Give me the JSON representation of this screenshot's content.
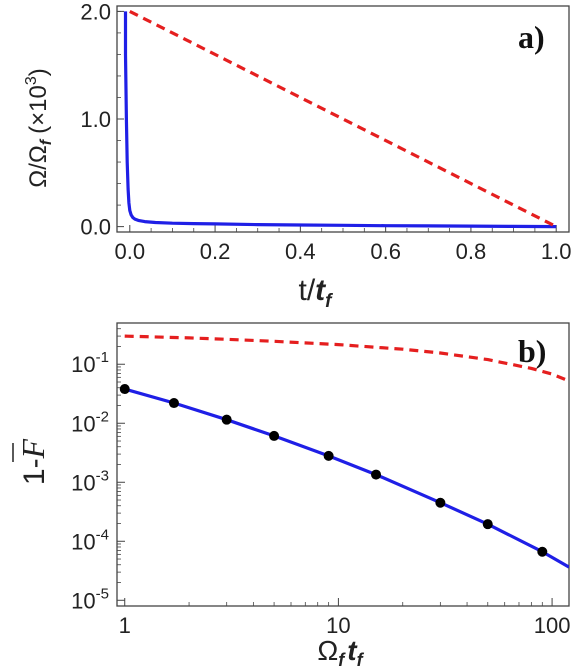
{
  "chart_data": [
    {
      "panel_label": "a)",
      "type": "line",
      "xlabel_main": "t/",
      "xlabel_italic": "t",
      "xlabel_sub": "f",
      "ylabel_omega": "Ω/Ω",
      "ylabel_sub": "f",
      "ylabel_factor": "(×10",
      "ylabel_exp": "3",
      "ylabel_close": ")",
      "xlim": [
        -0.03,
        1.03
      ],
      "ylim": [
        -0.05,
        2.05
      ],
      "x_ticks": [
        0.0,
        0.2,
        0.4,
        0.6,
        0.8,
        1.0
      ],
      "x_tick_labels": [
        "0.0",
        "0.2",
        "0.4",
        "0.6",
        "0.8",
        "1.0"
      ],
      "y_ticks": [
        0.0,
        1.0,
        2.0
      ],
      "y_tick_labels": [
        "0.0",
        "1.0",
        "2.0"
      ],
      "series": [
        {
          "color": "#1f1fe6",
          "style": "solid",
          "x": [
            -0.01,
            -0.01,
            -0.008,
            -0.006,
            -0.004,
            -0.002,
            0.0,
            0.003,
            0.007,
            0.012,
            0.02,
            0.035,
            0.06,
            0.1,
            0.15,
            0.2,
            0.3,
            0.4,
            0.5,
            0.6,
            0.7,
            0.8,
            0.9,
            1.0
          ],
          "values": [
            2.0,
            1.6,
            1.0,
            0.6,
            0.35,
            0.22,
            0.15,
            0.11,
            0.085,
            0.07,
            0.058,
            0.047,
            0.038,
            0.032,
            0.028,
            0.025,
            0.019,
            0.015,
            0.012,
            0.009,
            0.007,
            0.005,
            0.002,
            0.0
          ]
        },
        {
          "color": "#e51f1f",
          "style": "dashed",
          "x": [
            0.0,
            1.0
          ],
          "values": [
            2.0,
            0.0
          ]
        }
      ]
    },
    {
      "panel_label": "b)",
      "type": "line",
      "yscale": "log",
      "xscale": "log",
      "xlabel_omega": "Ω",
      "xlabel_sub": "f",
      "xlabel_t": "t",
      "xlabel_t_sub": "f",
      "ylabel": "1-",
      "ylabel_symbol": "F",
      "xlim": [
        0.92,
        120
      ],
      "ylim": [
        8e-06,
        0.5
      ],
      "x_ticks": [
        1,
        10,
        100
      ],
      "x_tick_labels": [
        "1",
        "10",
        "100"
      ],
      "y_ticks": [
        1e-05,
        0.0001,
        0.001,
        0.01,
        0.1
      ],
      "y_tick_base": "10",
      "y_tick_exps": [
        "-5",
        "-4",
        "-3",
        "-2",
        "-1"
      ],
      "series": [
        {
          "color": "#e51f1f",
          "style": "dashed",
          "x": [
            1,
            2,
            3,
            5,
            10,
            20,
            30,
            50,
            80,
            100,
            120
          ],
          "values": [
            0.3,
            0.28,
            0.265,
            0.245,
            0.215,
            0.18,
            0.155,
            0.12,
            0.085,
            0.068,
            0.052
          ]
        },
        {
          "color": "#1f1fe6",
          "style": "solid",
          "x": [
            1,
            1.7,
            3,
            5,
            9,
            15,
            30,
            50,
            90,
            120
          ],
          "values": [
            0.038,
            0.022,
            0.0115,
            0.0061,
            0.0028,
            0.00135,
            0.00045,
            0.000195,
            6.65e-05,
            3.65e-05
          ]
        },
        {
          "type": "scatter",
          "color": "#000000",
          "x": [
            1,
            1.7,
            3,
            5,
            9,
            15,
            30,
            50,
            90
          ],
          "values": [
            0.038,
            0.022,
            0.0115,
            0.0061,
            0.0028,
            0.00135,
            0.00045,
            0.000195,
            6.65e-05
          ]
        }
      ]
    }
  ]
}
